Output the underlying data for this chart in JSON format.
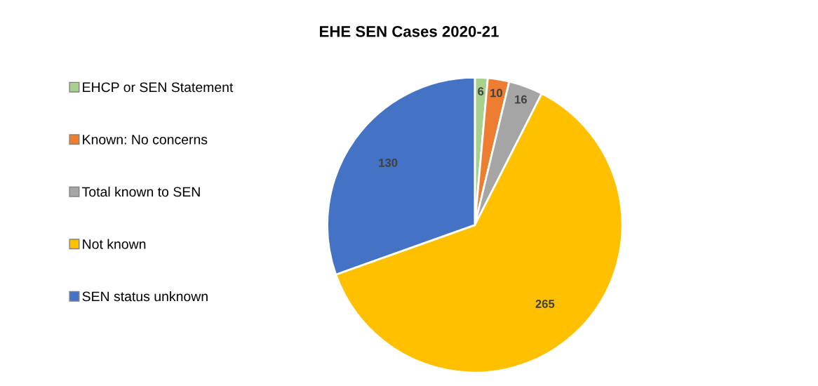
{
  "chart_data": {
    "type": "pie",
    "title": "EHE SEN Cases 2020-21",
    "categories": [
      "EHCP or SEN Statement",
      "Known: No concerns",
      "Total known to SEN",
      "Not known",
      "SEN status unknown"
    ],
    "values": [
      6,
      10,
      16,
      265,
      130
    ],
    "colors": [
      "#a9d18e",
      "#ed7d31",
      "#a5a5a5",
      "#ffc000",
      "#4472c4"
    ],
    "data_labels": true,
    "legend": "left"
  }
}
